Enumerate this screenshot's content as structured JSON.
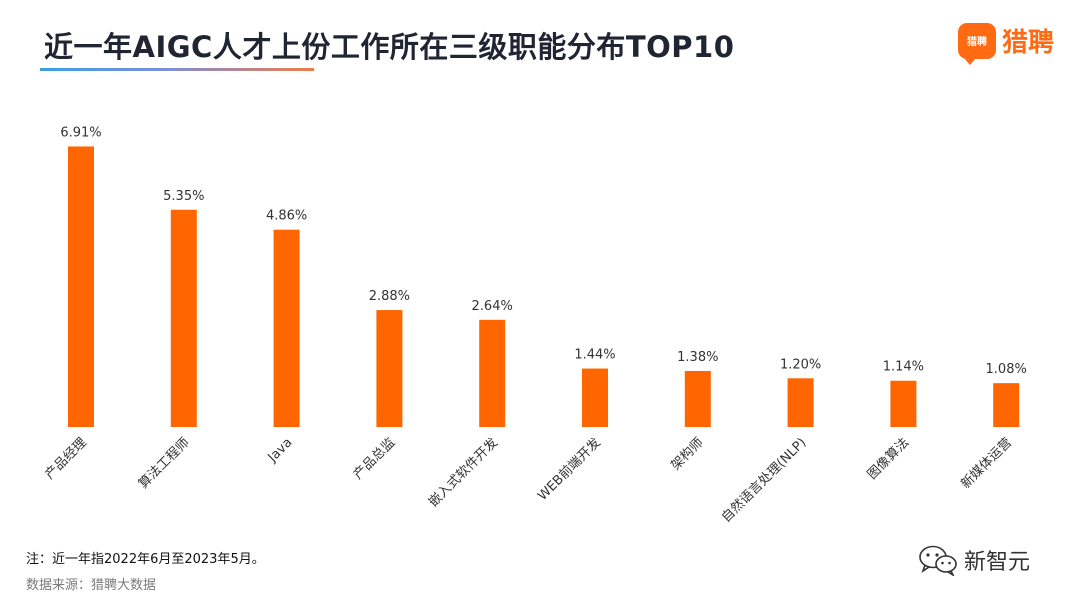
{
  "header": {
    "title": "近一年AIGC人才上份工作所在三级职能分布TOP10",
    "logo_badge": "猎聘",
    "logo_text": "猎聘"
  },
  "colors": {
    "bar": "#ff6600",
    "accent": "#ff6a13"
  },
  "chart_data": {
    "type": "bar",
    "title": "近一年AIGC人才上份工作所在三级职能分布TOP10",
    "xlabel": "",
    "ylabel": "",
    "ylim": [
      0,
      7.4
    ],
    "grid": false,
    "categories": [
      "产品经理",
      "算法工程师",
      "Java",
      "产品总监",
      "嵌入式软件开发",
      "WEB前端开发",
      "架构师",
      "自然语言处理(NLP)",
      "图像算法",
      "新媒体运营"
    ],
    "values": [
      6.91,
      5.35,
      4.86,
      2.88,
      2.64,
      1.44,
      1.38,
      1.2,
      1.14,
      1.08
    ],
    "value_labels": [
      "6.91%",
      "5.35%",
      "4.86%",
      "2.88%",
      "2.64%",
      "1.44%",
      "1.38%",
      "1.20%",
      "1.14%",
      "1.08%"
    ]
  },
  "footer": {
    "note": "注：近一年指2022年6月至2023年5月。",
    "source": "数据来源：猎聘大数据",
    "watermark": "新智元",
    "watermark_icon": "wechat-icon"
  }
}
